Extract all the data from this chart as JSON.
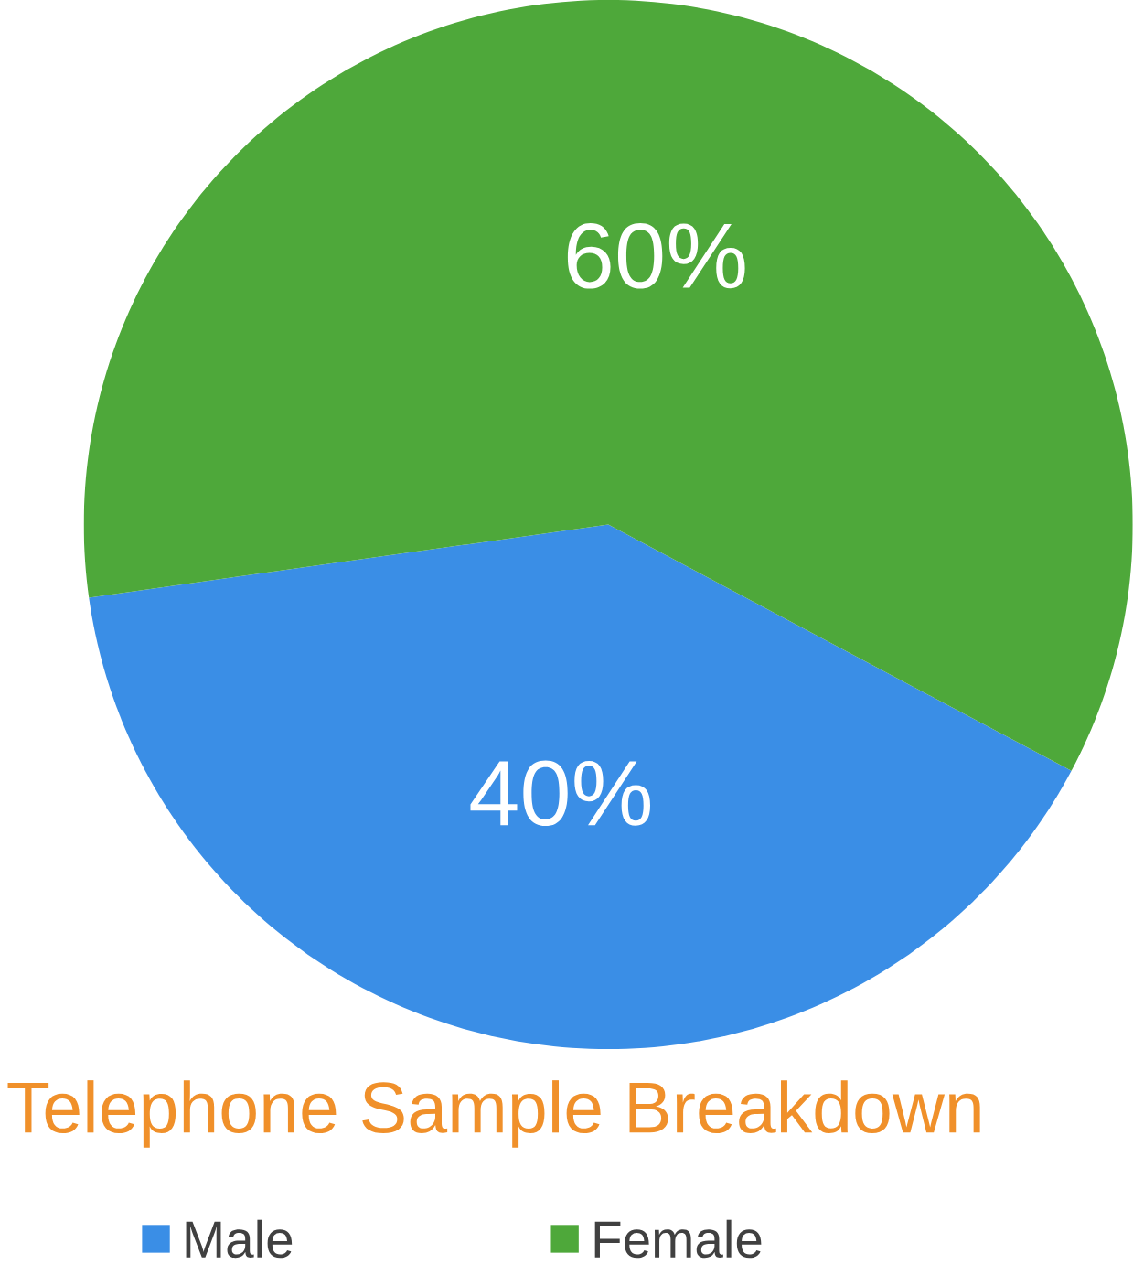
{
  "chart_data": {
    "type": "pie",
    "title": "Telephone Sample Breakdown",
    "categories": [
      "Male",
      "Female"
    ],
    "values": [
      40,
      60
    ],
    "colors": [
      "#3a8ee6",
      "#4ea83a"
    ],
    "value_labels": [
      "40%",
      "60%"
    ],
    "legend": "bottom"
  }
}
